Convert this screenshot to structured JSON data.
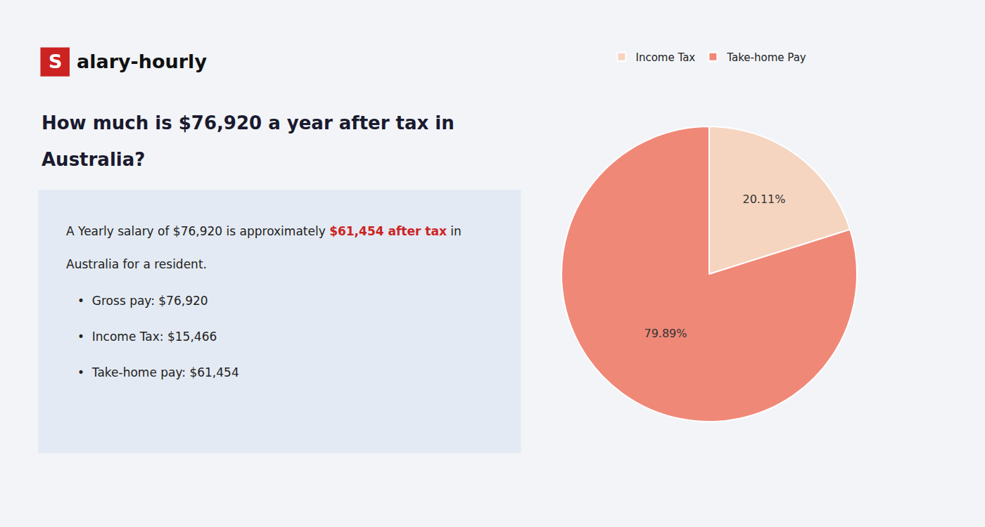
{
  "chart_data": {
    "type": "pie",
    "title": [
      "How much is $76,920 a year after tax in",
      "Australia?"
    ],
    "annotations": [
      "S",
      "alary-hourly",
      "A Yearly salary of $76,920 is approximately ",
      "$61,454 after tax",
      " in",
      "Australia for a resident.",
      "•  Gross pay: $76,920",
      "•  Income Tax: $15,466",
      "•  Take-home pay: $61,454"
    ],
    "categories": [
      "Income Tax",
      "Take-home Pay"
    ],
    "values": [
      20.11,
      79.89
    ],
    "value_labels": [
      "20.11%",
      "79.89%"
    ],
    "colors": [
      "#f5d5c0",
      "#f08878"
    ],
    "data_labels": true
  }
}
